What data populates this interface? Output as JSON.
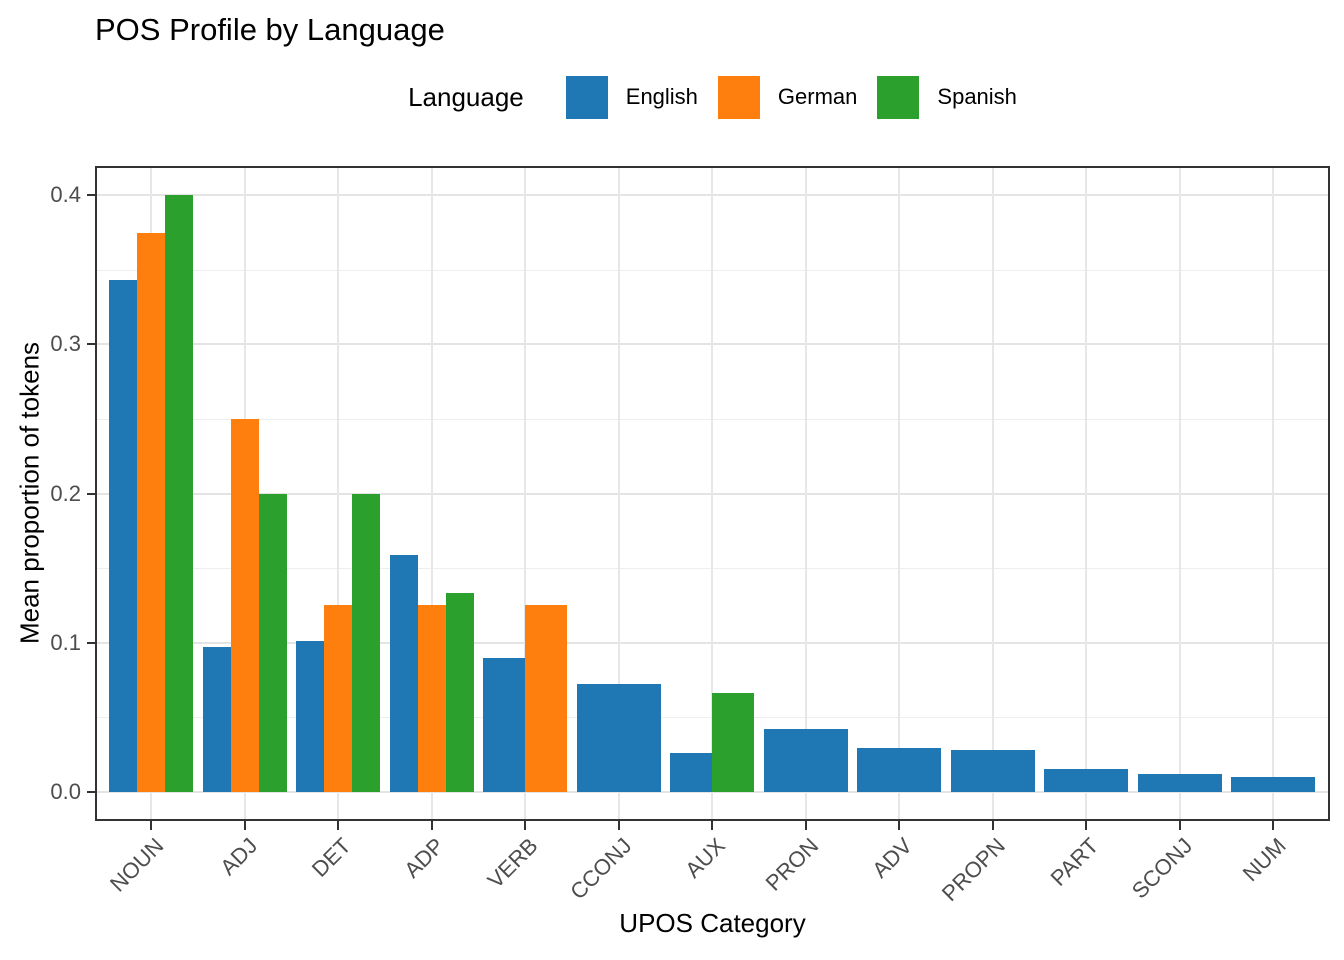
{
  "title": "POS Profile by Language",
  "legend": {
    "title": "Language",
    "entries": [
      "English",
      "German",
      "Spanish"
    ]
  },
  "axes": {
    "x_title": "UPOS Category",
    "y_title": "Mean proportion of tokens"
  },
  "colors": {
    "english": "#1f77b4",
    "german": "#ff7f0e",
    "spanish": "#2ca02c",
    "panel_border": "#333333",
    "grid_major": "#e4e4e4",
    "grid_minor": "#eeeeee",
    "axis_text": "#4d4d4d",
    "tick_mark": "#333333"
  },
  "chart_data": {
    "type": "bar",
    "title": "POS Profile by Language",
    "xlabel": "UPOS Category",
    "ylabel": "Mean proportion of tokens",
    "legend_title": "Language",
    "legend_position": "top-center",
    "grid": "major and minor horizontal, major vertical, light gray on white",
    "bar_layout": "dodged; categories missing a language widen remaining bars to fill the 0.9-wide group",
    "x_tick_angle_deg": 45,
    "categories": [
      "NOUN",
      "ADJ",
      "DET",
      "ADP",
      "VERB",
      "CCONJ",
      "AUX",
      "PRON",
      "ADV",
      "PROPN",
      "PART",
      "SCONJ",
      "NUM"
    ],
    "series": [
      {
        "name": "English",
        "color": "#1f77b4",
        "values": [
          0.343,
          0.097,
          0.101,
          0.159,
          0.09,
          0.072,
          0.026,
          0.042,
          0.029,
          0.028,
          0.015,
          0.012,
          0.01
        ]
      },
      {
        "name": "German",
        "color": "#ff7f0e",
        "values": [
          0.375,
          0.25,
          0.125,
          0.125,
          0.125,
          null,
          null,
          null,
          null,
          null,
          null,
          null,
          null
        ]
      },
      {
        "name": "Spanish",
        "color": "#2ca02c",
        "values": [
          0.4,
          0.2,
          0.2,
          0.133,
          null,
          null,
          0.066,
          null,
          null,
          null,
          null,
          null,
          null
        ]
      }
    ],
    "ylim": [
      -0.02,
      0.42
    ],
    "y_major_ticks": [
      0.0,
      0.1,
      0.2,
      0.3,
      0.4
    ],
    "y_minor_ticks": [
      0.05,
      0.15,
      0.25,
      0.35
    ],
    "y_tick_label_format": "one decimal"
  }
}
